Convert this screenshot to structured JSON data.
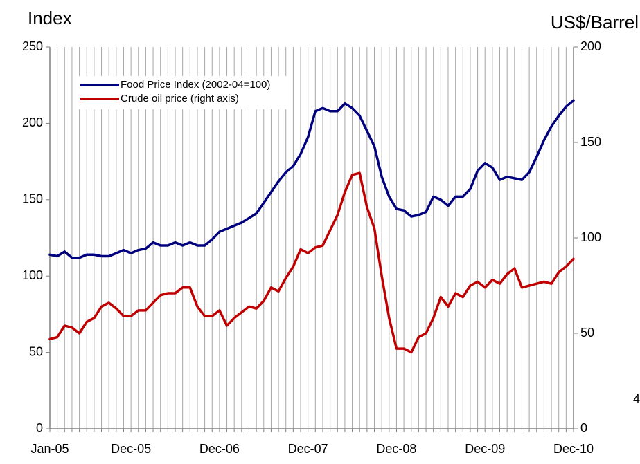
{
  "chart_data": {
    "type": "line",
    "y_title": "Index",
    "y2_title": "US$/Barrel",
    "annotation": "4",
    "categories": [
      "Jan-05",
      null,
      null,
      null,
      null,
      null,
      null,
      null,
      null,
      null,
      null,
      "Dec-05",
      null,
      null,
      null,
      null,
      null,
      null,
      null,
      null,
      null,
      null,
      null,
      "Dec-06",
      null,
      null,
      null,
      null,
      null,
      null,
      null,
      null,
      null,
      null,
      null,
      "Dec-07",
      null,
      null,
      null,
      null,
      null,
      null,
      null,
      null,
      null,
      null,
      null,
      "Dec-08",
      null,
      null,
      null,
      null,
      null,
      null,
      null,
      null,
      null,
      null,
      null,
      "Dec-09",
      null,
      null,
      null,
      null,
      null,
      null,
      null,
      null,
      null,
      null,
      null,
      "Dec-10"
    ],
    "series": [
      {
        "name": "Food Price Index (2002-04=100)",
        "color": "#00007f",
        "axis": "y",
        "values": [
          114,
          113,
          116,
          112,
          112,
          114,
          114,
          113,
          113,
          115,
          117,
          115,
          117,
          118,
          122,
          120,
          120,
          122,
          120,
          122,
          120,
          120,
          124,
          129,
          131,
          133,
          135,
          138,
          141,
          148,
          155,
          162,
          168,
          172,
          180,
          191,
          208,
          210,
          208,
          208,
          213,
          210,
          205,
          195,
          185,
          165,
          152,
          144,
          143,
          139,
          140,
          142,
          152,
          150,
          146,
          152,
          152,
          157,
          169,
          174,
          171,
          163,
          165,
          164,
          163,
          168,
          178,
          189,
          198,
          205,
          211,
          215
        ]
      },
      {
        "name": "Crude oil price (right axis)",
        "color": "#c00000",
        "axis": "y2",
        "values": [
          47,
          48,
          54,
          53,
          50,
          56,
          58,
          64,
          66,
          63,
          59,
          59,
          62,
          62,
          66,
          70,
          71,
          71,
          74,
          74,
          64,
          59,
          59,
          62,
          54,
          58,
          61,
          64,
          63,
          67,
          74,
          72,
          79,
          85,
          94,
          92,
          95,
          96,
          104,
          112,
          124,
          133,
          134,
          116,
          105,
          80,
          58,
          42,
          42,
          40,
          48,
          50,
          58,
          69,
          64,
          71,
          69,
          75,
          77,
          74,
          78,
          76,
          81,
          84,
          74,
          75,
          76,
          77,
          76,
          82,
          85,
          89
        ]
      }
    ],
    "ylim": [
      0,
      250
    ],
    "yticks": [
      0,
      50,
      100,
      150,
      200,
      250
    ],
    "y2lim": [
      0,
      200
    ],
    "y2ticks": [
      0,
      50,
      100,
      150,
      200
    ],
    "grid": true
  }
}
